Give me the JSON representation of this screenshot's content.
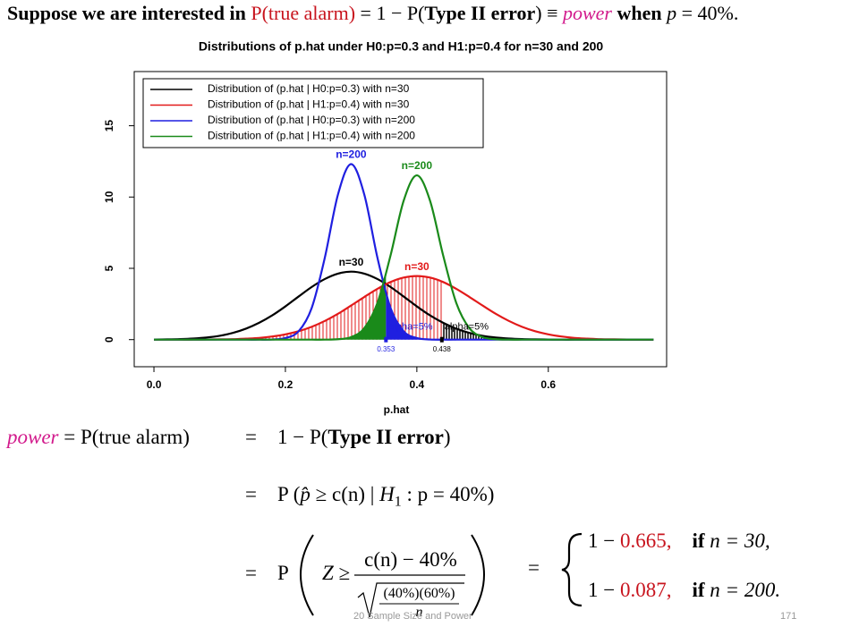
{
  "header": [
    "Suppose we are interested in",
    "P(true alarm)",
    "= 1 − P(",
    "Type II error",
    ") ≡",
    "power",
    "when",
    "p",
    "= 40%."
  ],
  "chart_data": {
    "type": "line",
    "title": "Distributions of p.hat under H0:p=0.3 and H1:p=0.4 for n=30 and 200",
    "xlabel": "p.hat",
    "x": [
      0,
      0.02,
      0.04,
      0.06,
      0.08,
      0.1,
      0.12,
      0.14,
      0.16,
      0.18,
      0.2,
      0.22,
      0.24,
      0.26,
      0.28,
      0.3,
      0.32,
      0.34,
      0.36,
      0.38,
      0.4,
      0.42,
      0.44,
      0.46,
      0.48,
      0.5,
      0.52,
      0.54,
      0.56,
      0.58,
      0.6,
      0.62,
      0.64,
      0.66,
      0.68,
      0.7,
      0.72,
      0.74,
      0.76
    ],
    "series": [
      {
        "name": "Distribution of (p.hat | H0:p=0.3) with n=30",
        "label": "n=30",
        "color": "#000000",
        "values": [
          0.01,
          0.02,
          0.04,
          0.08,
          0.15,
          0.27,
          0.47,
          0.77,
          1.18,
          1.7,
          2.33,
          3.02,
          3.69,
          4.25,
          4.63,
          4.77,
          4.63,
          4.25,
          3.69,
          3.02,
          2.33,
          1.7,
          1.18,
          0.77,
          0.47,
          0.27,
          0.15,
          0.08,
          0.04,
          0.02,
          0.01,
          0,
          0,
          0,
          0,
          0,
          0,
          0,
          0
        ]
      },
      {
        "name": "Distribution of (p.hat | H1:p=0.4) with n=30",
        "label": "n=30",
        "color": "#e21a1a",
        "values": [
          0,
          0,
          0,
          0,
          0.01,
          0.02,
          0.03,
          0.07,
          0.12,
          0.22,
          0.37,
          0.59,
          0.9,
          1.31,
          1.81,
          2.39,
          2.99,
          3.56,
          4.04,
          4.35,
          4.46,
          4.35,
          4.04,
          3.56,
          2.99,
          2.39,
          1.81,
          1.31,
          0.9,
          0.59,
          0.37,
          0.22,
          0.12,
          0.07,
          0.03,
          0.02,
          0.01,
          0,
          0
        ]
      },
      {
        "name": "Distribution of (p.hat | H0:p=0.3) with n=200",
        "label": "n=200",
        "color": "#1f1fe0",
        "values": [
          0,
          0,
          0,
          0,
          0,
          0,
          0,
          0,
          0,
          0.01,
          0.11,
          0.58,
          2.22,
          5.75,
          10.18,
          12.31,
          10.18,
          5.75,
          2.22,
          0.58,
          0.11,
          0.01,
          0,
          0,
          0,
          0,
          0,
          0,
          0,
          0,
          0,
          0,
          0,
          0,
          0,
          0,
          0,
          0,
          0
        ]
      },
      {
        "name": "Distribution of (p.hat | H1:p=0.4) with n=200",
        "label": "n=200",
        "color": "#1a8a1a",
        "values": [
          0,
          0,
          0,
          0,
          0,
          0,
          0,
          0,
          0,
          0,
          0,
          0,
          0,
          0,
          0.03,
          0.18,
          0.8,
          2.57,
          5.91,
          9.75,
          11.52,
          9.75,
          5.91,
          2.57,
          0.8,
          0.18,
          0.03,
          0,
          0,
          0,
          0,
          0,
          0,
          0,
          0,
          0,
          0,
          0,
          0
        ]
      }
    ],
    "critical_values": [
      {
        "value": 0.353,
        "label": "0.353",
        "annotation": "alpha=5%"
      },
      {
        "value": 0.438,
        "label": "0.438",
        "annotation": "alpha=5%"
      }
    ],
    "xlim": [
      -0.03,
      0.78
    ],
    "ylim": [
      -1.9,
      18.8
    ],
    "xticks": [
      {
        "value": 0,
        "label": "0.0"
      },
      {
        "value": 0.2,
        "label": "0.2"
      },
      {
        "value": 0.4,
        "label": "0.4"
      },
      {
        "value": 0.6,
        "label": "0.6"
      }
    ],
    "yticks": [
      0,
      5,
      10,
      15
    ],
    "legend": "top-left"
  },
  "math": {
    "line1": {
      "power": "power",
      "lhs": "= P(true alarm)",
      "eq": "=",
      "a": "1 − P(",
      "bold": "Type II error",
      "b": ")"
    },
    "line2": {
      "eq": "=",
      "a": "P (",
      "phat": "p̂",
      "b": "≥ c(n) |",
      "H": "H",
      "sub": "1",
      "c": ": p = 40%)"
    },
    "line3": {
      "eq": "=",
      "P": "P",
      "Z": "Z ≥",
      "num": "c(n) − 40%",
      "den": "(40%)(60%)",
      "n": "n",
      "eq2": "="
    },
    "cases": [
      {
        "a": "1 −",
        "value": "0.665,",
        "if": "if",
        "cond": "n = 30,"
      },
      {
        "a": "1 −",
        "value": "0.087,",
        "if": "if",
        "cond": "n = 200."
      }
    ]
  },
  "footer": {
    "subject": "20 Sample Size and Power",
    "page": "171"
  }
}
